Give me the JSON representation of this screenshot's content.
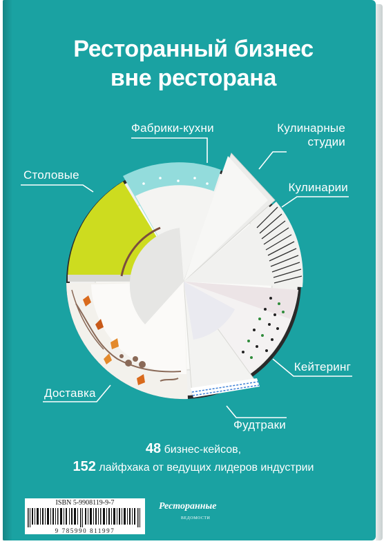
{
  "cover": {
    "title_line1": "Ресторанный бизнес",
    "title_line2": "вне ресторана",
    "segments": {
      "factories": "Фабрики-кухни",
      "studios_line1": "Кулинарные",
      "studios_line2": "студии",
      "canteens": "Столовые",
      "culinary": "Кулинарии",
      "catering": "Кейтеринг",
      "delivery": "Доставка",
      "foodtrucks": "Фудтраки"
    },
    "cases_number": "48",
    "cases_text": "бизнес-кейсов,",
    "hacks_number": "152",
    "hacks_text": "лайфхака от ведущих лидеров индустрии",
    "colors": {
      "background": "#1aa2a2",
      "lime": "#cddc1f",
      "mint": "#93dcdc",
      "plate": "#f1f1ef"
    }
  },
  "barcode": {
    "isbn": "ISBN 5-9908119-9-7",
    "ean": "9 785990 811997"
  },
  "publisher_logo": {
    "word": "Ресторанные",
    "sub": "ВЕДОМОСТИ"
  }
}
